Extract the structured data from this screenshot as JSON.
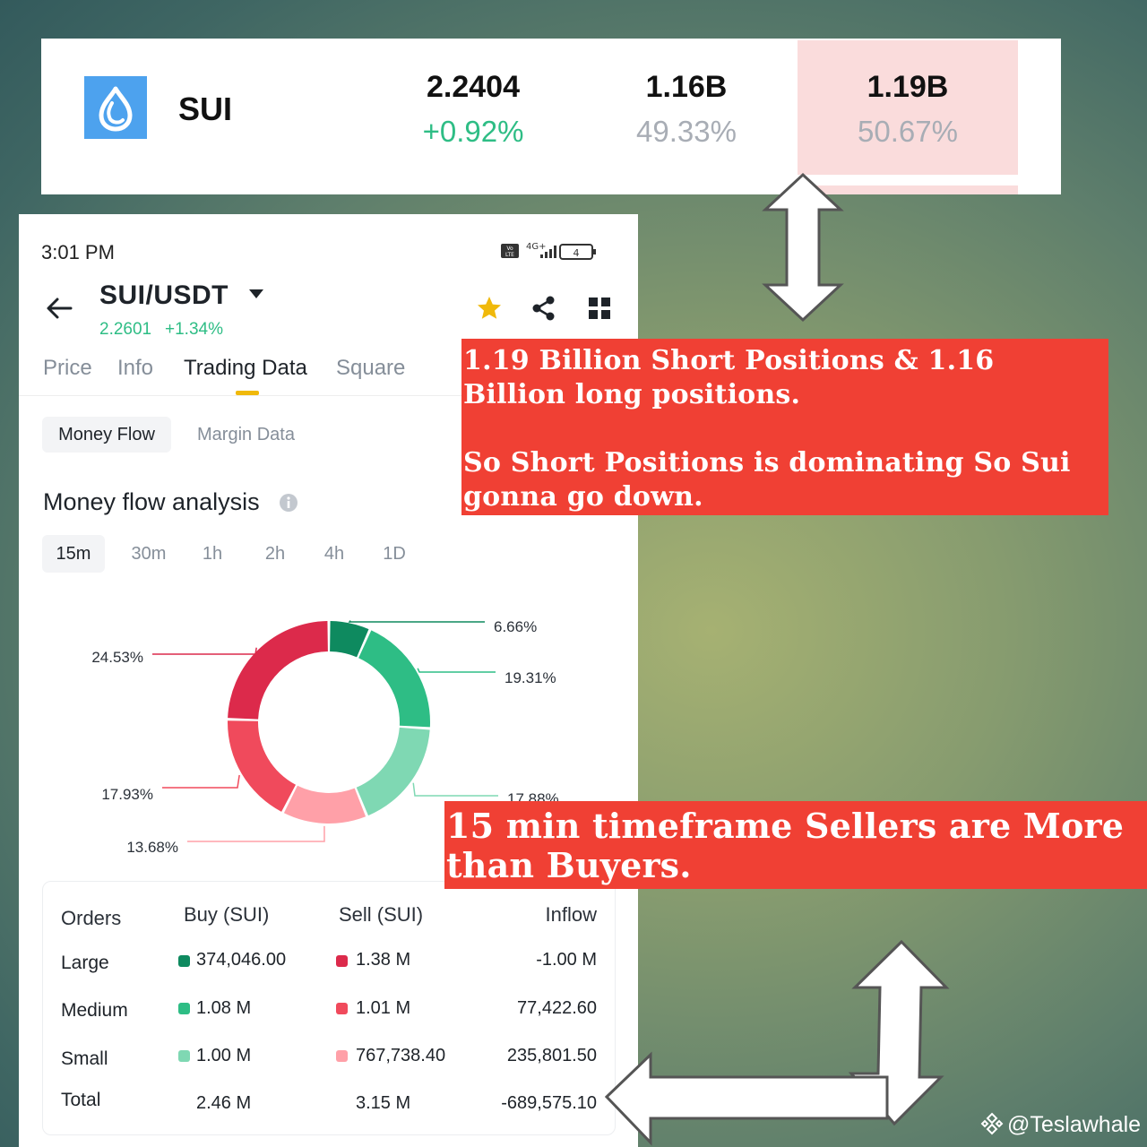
{
  "top_strip": {
    "symbol": "SUI",
    "price": "2.2404",
    "price_change": "+0.92%",
    "long_value": "1.16B",
    "long_pct": "49.33%",
    "short_value": "1.19B",
    "short_pct": "50.67%",
    "colors": {
      "positive": "#2ebd85",
      "muted": "#a8adb5",
      "short_bg": "#fadcdc",
      "logo": "#4da2ee"
    }
  },
  "phone": {
    "status_time": "3:01 PM",
    "status": {
      "network": "4G+",
      "lte_badge": "Vo LTE",
      "battery": "4"
    },
    "pair": {
      "title": "SUI/USDT",
      "price": "2.2601",
      "change": "+1.34%"
    },
    "icons": [
      "back-arrow-icon",
      "caret-down-icon",
      "star-icon",
      "share-icon",
      "grid-icon",
      "info-icon"
    ],
    "tabs": [
      "Price",
      "Info",
      "Trading Data",
      "Square"
    ],
    "active_tab": "Trading Data",
    "subtabs": [
      "Money Flow",
      "Margin Data"
    ],
    "section_title": "Money flow analysis",
    "timeframes": [
      "15m",
      "30m",
      "1h",
      "2h",
      "4h",
      "1D"
    ],
    "active_timeframe": "15m"
  },
  "chart_data": {
    "type": "pie",
    "donut": true,
    "labels": [
      "6.66%",
      "19.31%",
      "17.88%",
      "13.68%",
      "17.93%",
      "24.53%"
    ],
    "values": [
      6.66,
      19.31,
      17.88,
      13.68,
      17.93,
      24.53
    ],
    "colors": [
      "#0e8a5f",
      "#2ebd85",
      "#7fd8b3",
      "#ffa0a8",
      "#f04a5c",
      "#dc2a4b"
    ],
    "legend": "none"
  },
  "table": {
    "headers": {
      "orders": "Orders",
      "buy": "Buy (SUI)",
      "sell": "Sell (SUI)",
      "inflow": "Inflow"
    },
    "rows": [
      {
        "label": "Large",
        "buy": "374,046.00",
        "sell": "1.38 M",
        "inflow": "-1.00 M",
        "buy_color": "#0e8a5f",
        "sell_color": "#dc2a4b"
      },
      {
        "label": "Medium",
        "buy": "1.08 M",
        "sell": "1.01 M",
        "inflow": "77,422.60",
        "buy_color": "#2ebd85",
        "sell_color": "#f04a5c"
      },
      {
        "label": "Small",
        "buy": "1.00 M",
        "sell": "767,738.40",
        "inflow": "235,801.50",
        "buy_color": "#7fd8b3",
        "sell_color": "#ffa0a8"
      },
      {
        "label": "Total",
        "buy": "2.46 M",
        "sell": "3.15 M",
        "inflow": "-689,575.10"
      }
    ]
  },
  "annotations": {
    "positions_line1": "1.19 Billion Short Positions & 1.16 Billion long positions.",
    "positions_line2": "So Short Positions is dominating So Sui gonna go down.",
    "timeframe": "15 min timeframe Sellers are More than Buyers.",
    "color": "#f04034"
  },
  "watermark": "@Teslawhale"
}
